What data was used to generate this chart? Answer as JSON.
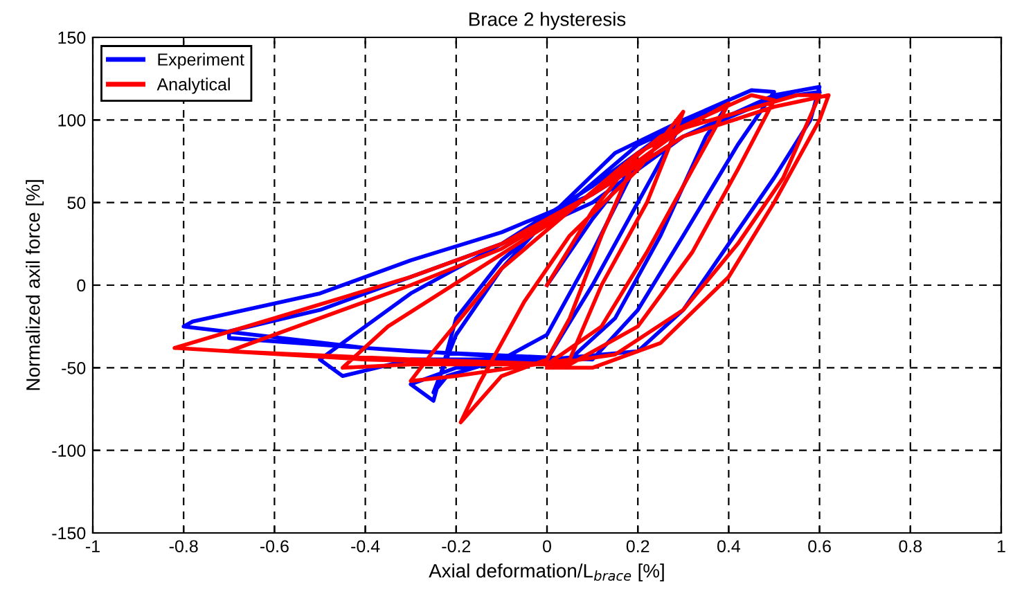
{
  "chart_data": {
    "type": "line",
    "title": "Brace 2 hysteresis",
    "xlabel": "Axial deformation/L$_{brace}$ [%]",
    "ylabel": "Normalized axil force [%]",
    "xlim": [
      -1,
      1
    ],
    "ylim": [
      -150,
      150
    ],
    "xticks": [
      -1,
      -0.8,
      -0.6,
      -0.4,
      -0.2,
      0,
      0.2,
      0.4,
      0.6,
      0.8,
      1
    ],
    "yticks": [
      -150,
      -100,
      -50,
      0,
      50,
      100,
      150
    ],
    "grid": true,
    "legend": "top left",
    "marker": "none",
    "line_style": "solid",
    "series": [
      {
        "name": "Experiment",
        "color": "#0000ff",
        "x": [
          0,
          0.1,
          0.2,
          0.1,
          0,
          -0.1,
          -0.22,
          -0.25,
          -0.2,
          -0.1,
          0,
          0.15,
          0.3,
          0.2,
          0.1,
          0,
          -0.2,
          -0.3,
          -0.25,
          -0.2,
          -0.1,
          0.05,
          0.2,
          0.4,
          0.35,
          0.25,
          0.15,
          0.05,
          -0.3,
          -0.45,
          -0.5,
          -0.3,
          -0.1,
          0.1,
          0.3,
          0.45,
          0.5,
          0.42,
          0.3,
          0.2,
          0.1,
          -0.3,
          -0.7,
          -0.7,
          -0.5,
          -0.3,
          -0.1,
          0.1,
          0.3,
          0.5,
          0.6,
          0.58,
          0.5,
          0.4,
          0.3,
          0.2,
          0,
          -0.4,
          -0.8,
          -0.78,
          -0.5,
          -0.3,
          -0.1,
          0.1,
          0.3,
          0.5,
          0.6
        ],
        "values": [
          0,
          40,
          75,
          20,
          -30,
          -45,
          -55,
          -65,
          -30,
          10,
          40,
          80,
          100,
          50,
          0,
          -45,
          -50,
          -60,
          -70,
          -20,
          15,
          50,
          85,
          110,
          90,
          30,
          -20,
          -45,
          -45,
          -55,
          -45,
          -5,
          25,
          60,
          100,
          118,
          117,
          85,
          30,
          -15,
          -45,
          -40,
          -32,
          -28,
          -15,
          5,
          25,
          50,
          90,
          115,
          120,
          100,
          65,
          25,
          -15,
          -40,
          -45,
          -38,
          -25,
          -22,
          -5,
          15,
          32,
          55,
          90,
          113,
          117
        ]
      },
      {
        "name": "Analytical",
        "color": "#ff0000",
        "x": [
          0,
          0.1,
          0.2,
          0.12,
          0.05,
          0,
          -0.1,
          -0.19,
          -0.15,
          -0.05,
          0.05,
          0.2,
          0.3,
          0.22,
          0.12,
          0.05,
          -0.2,
          -0.3,
          -0.25,
          -0.1,
          0.05,
          0.2,
          0.4,
          0.32,
          0.22,
          0.12,
          0,
          -0.3,
          -0.45,
          -0.35,
          -0.15,
          0.05,
          0.25,
          0.45,
          0.5,
          0.42,
          0.32,
          0.2,
          0.05,
          -0.3,
          -0.7,
          -0.55,
          -0.3,
          -0.1,
          0.1,
          0.3,
          0.55,
          0.6,
          0.52,
          0.42,
          0.3,
          0.15,
          0,
          -0.4,
          -0.82,
          -0.6,
          -0.3,
          -0.1,
          0.1,
          0.3,
          0.5,
          0.62,
          0.6,
          0.5,
          0.4,
          0.25,
          0.1,
          0
        ],
        "values": [
          0,
          45,
          80,
          30,
          -20,
          -45,
          -55,
          -83,
          -60,
          -10,
          30,
          70,
          105,
          50,
          0,
          -45,
          -55,
          -58,
          -40,
          10,
          45,
          80,
          110,
          70,
          20,
          -25,
          -48,
          -48,
          -50,
          -25,
          10,
          45,
          90,
          115,
          112,
          70,
          20,
          -25,
          -48,
          -45,
          -40,
          -25,
          0,
          22,
          55,
          95,
          115,
          115,
          65,
          25,
          -15,
          -42,
          -48,
          -45,
          -38,
          -20,
          5,
          25,
          55,
          90,
          108,
          115,
          100,
          50,
          5,
          -35,
          -50,
          -50
        ]
      }
    ]
  }
}
